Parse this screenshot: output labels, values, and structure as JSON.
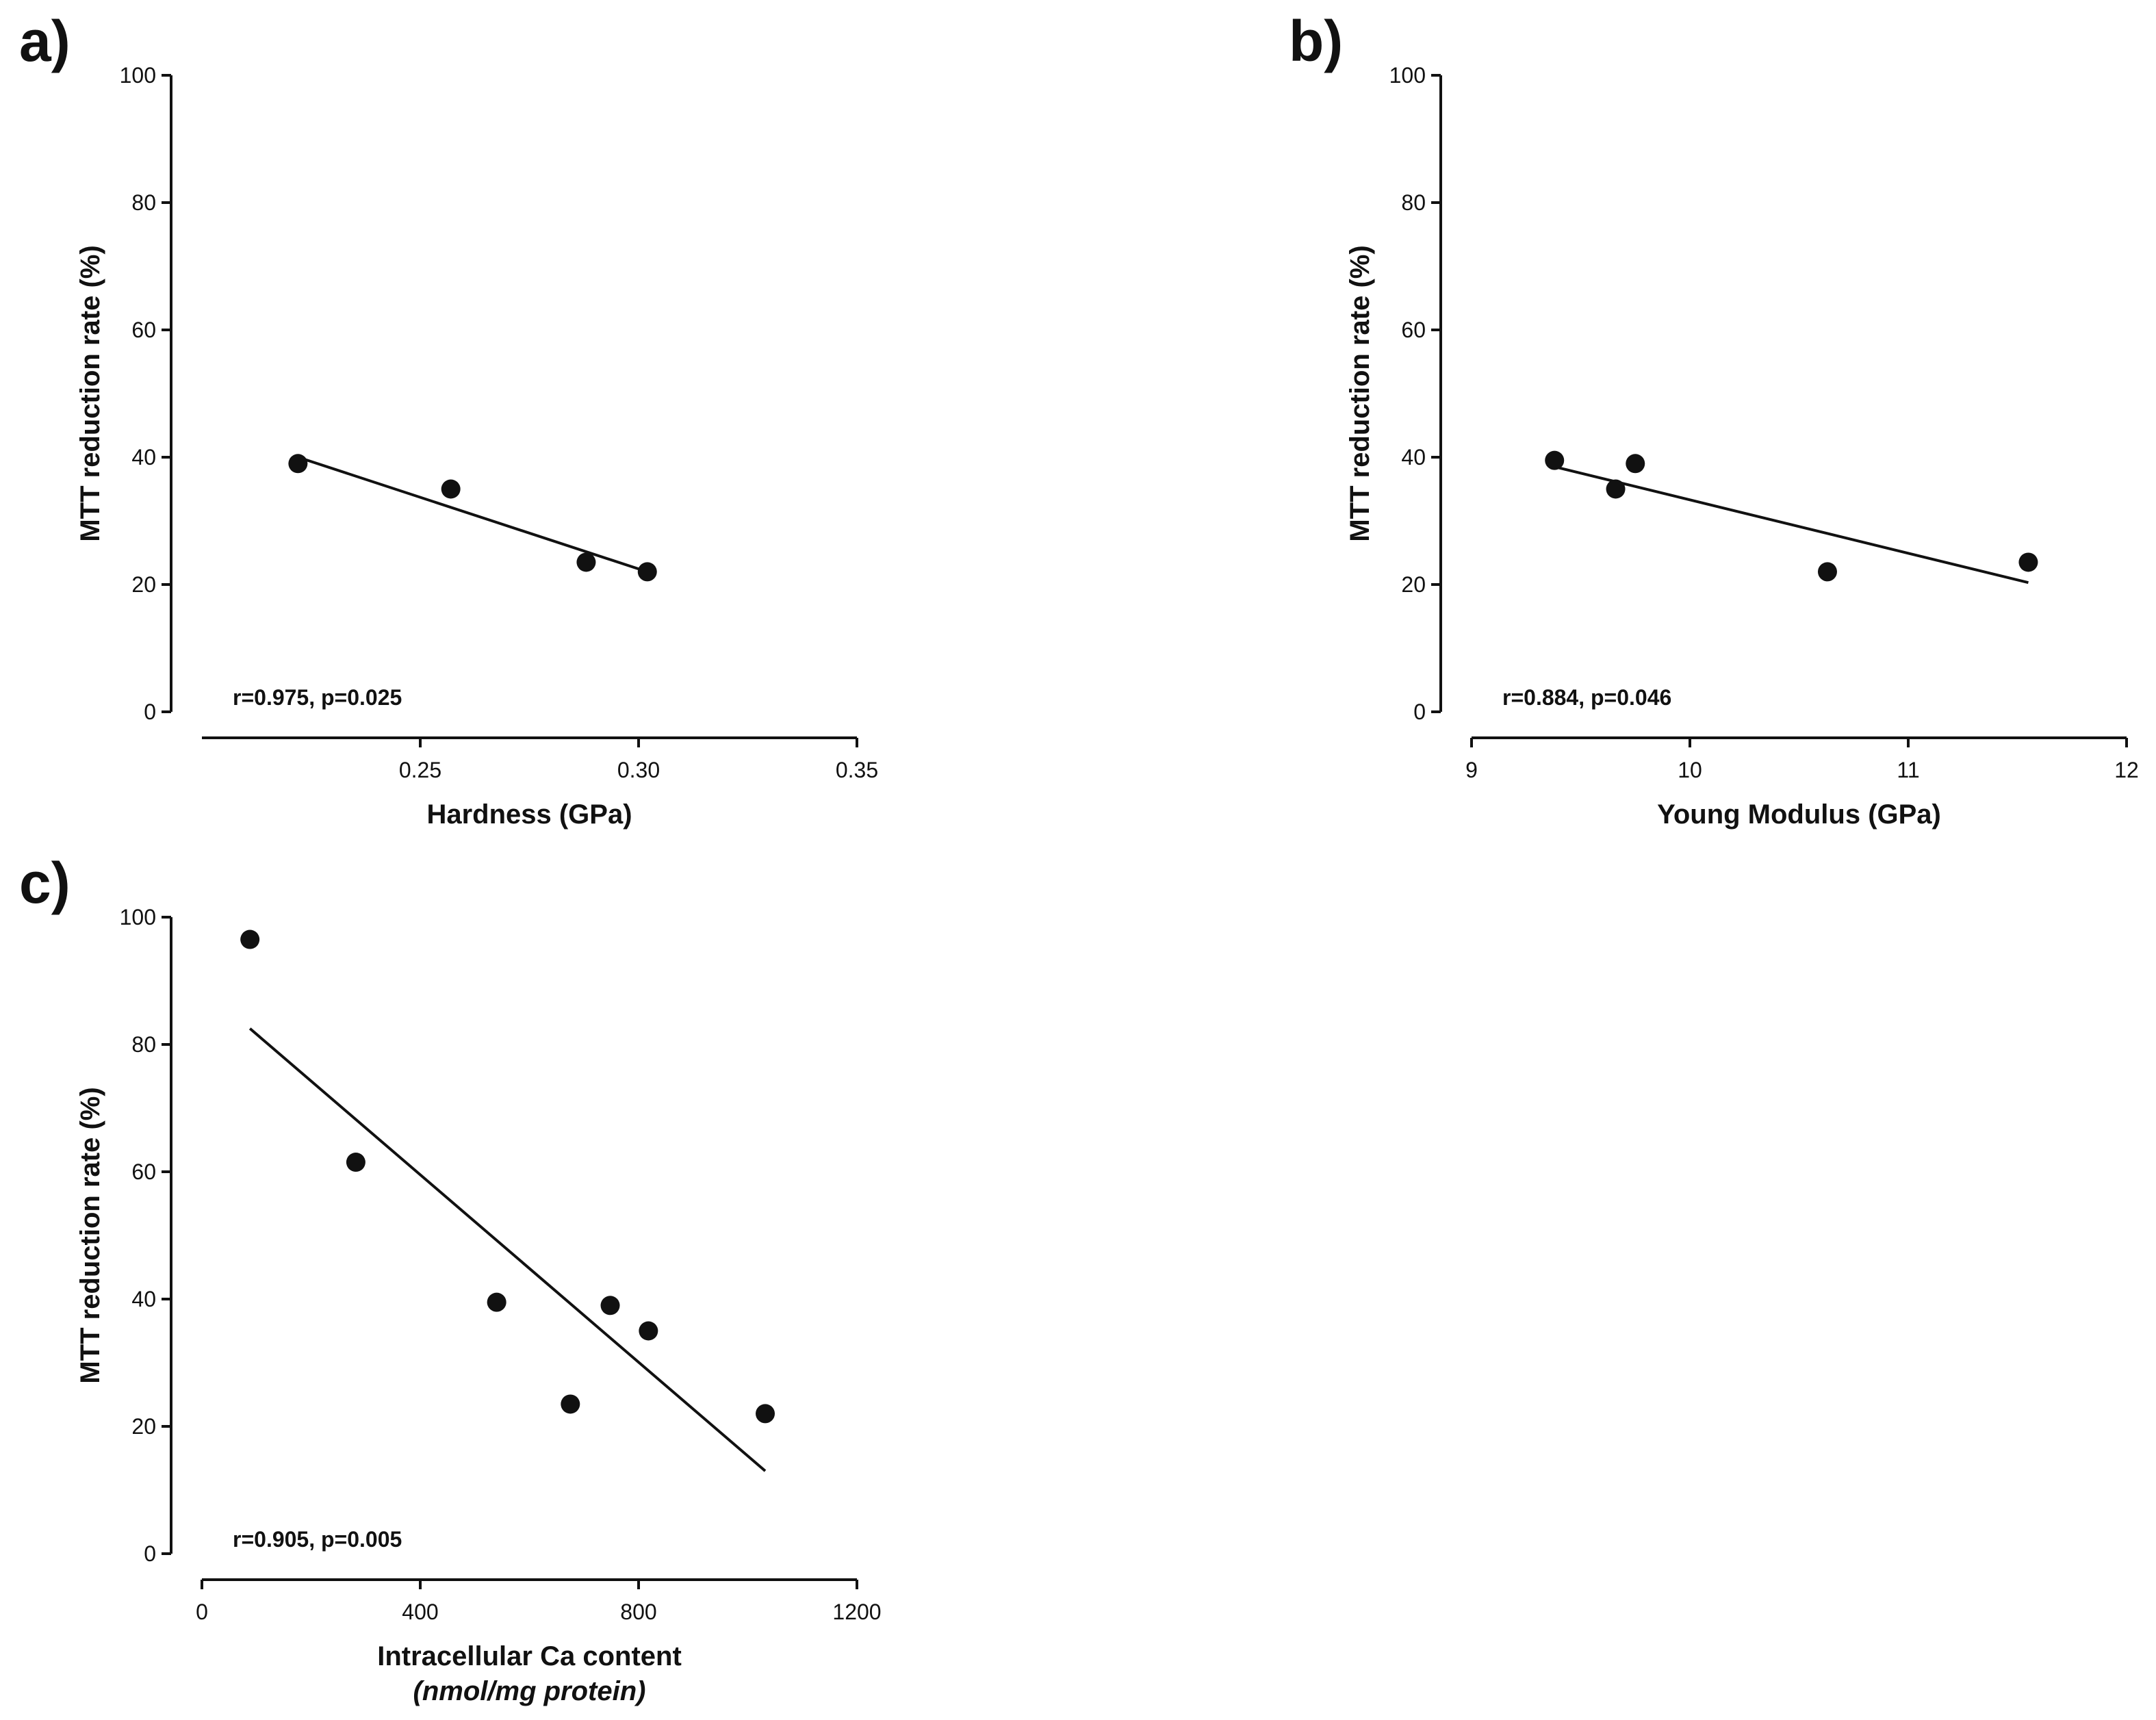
{
  "chart_data": [
    {
      "id": "a",
      "panel_label": "a)",
      "type": "scatter",
      "xlabel": "Hardness (GPa)",
      "xlabel_unit": "",
      "ylabel": "MTT reduction rate (%)",
      "xlim": [
        0.2,
        0.35
      ],
      "ylim": [
        0,
        100
      ],
      "x_ticks": [
        0.25,
        0.3,
        0.35
      ],
      "x_tick_labels": [
        "0.25",
        "0.30",
        "0.35"
      ],
      "y_ticks": [
        0,
        20,
        40,
        60,
        80,
        100
      ],
      "y_tick_labels": [
        "0",
        "20",
        "40",
        "60",
        "80",
        "100"
      ],
      "points": [
        {
          "x": 0.222,
          "y": 39
        },
        {
          "x": 0.257,
          "y": 35
        },
        {
          "x": 0.288,
          "y": 23.5
        },
        {
          "x": 0.302,
          "y": 22
        }
      ],
      "fit_line": {
        "x": [
          0.222,
          0.302
        ],
        "y": [
          40,
          22
        ]
      },
      "annotation": "r=0.975, p=0.025"
    },
    {
      "id": "b",
      "panel_label": "b)",
      "type": "scatter",
      "xlabel": "Young Modulus (GPa)",
      "xlabel_unit": "",
      "ylabel": "MTT reduction rate (%)",
      "xlim": [
        9,
        12
      ],
      "ylim": [
        0,
        100
      ],
      "x_ticks": [
        9,
        10,
        11,
        12
      ],
      "x_tick_labels": [
        "9",
        "10",
        "11",
        "12"
      ],
      "y_ticks": [
        0,
        20,
        40,
        60,
        80,
        100
      ],
      "y_tick_labels": [
        "0",
        "20",
        "40",
        "60",
        "80",
        "100"
      ],
      "points": [
        {
          "x": 9.38,
          "y": 39.5
        },
        {
          "x": 9.66,
          "y": 35
        },
        {
          "x": 9.75,
          "y": 39
        },
        {
          "x": 10.63,
          "y": 22
        },
        {
          "x": 11.55,
          "y": 23.5
        }
      ],
      "fit_line": {
        "x": [
          9.38,
          11.55
        ],
        "y": [
          38.5,
          20.3
        ]
      },
      "annotation": "r=0.884, p=0.046"
    },
    {
      "id": "c",
      "panel_label": "c)",
      "type": "scatter",
      "xlabel": "Intracellular Ca content",
      "xlabel_unit": "(nmol/mg protein)",
      "ylabel": "MTT reduction rate (%)",
      "xlim": [
        0,
        1200
      ],
      "ylim": [
        0,
        100
      ],
      "x_ticks": [
        0,
        400,
        800,
        1200
      ],
      "x_tick_labels": [
        "0",
        "400",
        "800",
        "1200"
      ],
      "y_ticks": [
        0,
        20,
        40,
        60,
        80,
        100
      ],
      "y_tick_labels": [
        "0",
        "20",
        "40",
        "60",
        "80",
        "100"
      ],
      "points": [
        {
          "x": 88,
          "y": 96.5
        },
        {
          "x": 282,
          "y": 61.5
        },
        {
          "x": 540,
          "y": 39.5
        },
        {
          "x": 675,
          "y": 23.5
        },
        {
          "x": 748,
          "y": 39
        },
        {
          "x": 818,
          "y": 35
        },
        {
          "x": 1032,
          "y": 22
        }
      ],
      "fit_line": {
        "x": [
          88,
          1032
        ],
        "y": [
          82.5,
          13
        ]
      },
      "annotation": "r=0.905, p=0.005"
    }
  ]
}
